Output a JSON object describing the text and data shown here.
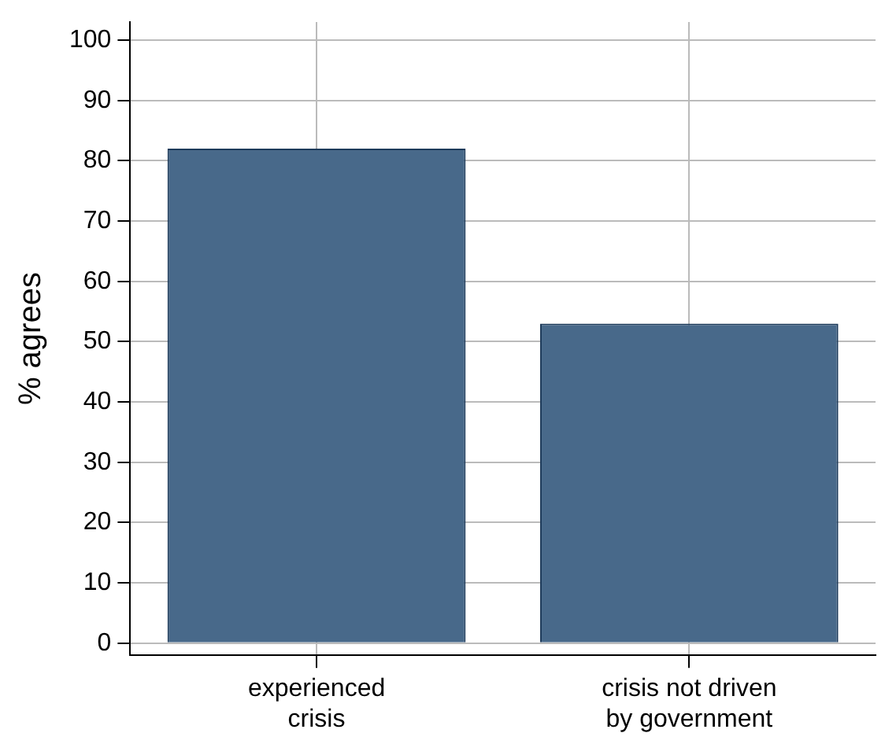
{
  "chart_data": {
    "type": "bar",
    "ylabel": "% agrees",
    "categories": [
      "experienced\ncrisis",
      "crisis not driven\nby government"
    ],
    "values": [
      82,
      53
    ],
    "color": "#48698a",
    "ylim": [
      -2,
      103
    ],
    "yticks": [
      0,
      10,
      20,
      30,
      40,
      50,
      60,
      70,
      80,
      90,
      100
    ],
    "grid": true,
    "legend": false
  }
}
